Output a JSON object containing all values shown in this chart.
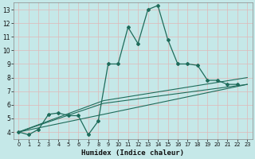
{
  "title": "",
  "xlabel": "Humidex (Indice chaleur)",
  "bg_color": "#c5e8e8",
  "grid_color": "#e0b8b8",
  "line_color": "#1e6b5a",
  "xlim": [
    -0.5,
    23.5
  ],
  "ylim": [
    3.5,
    13.5
  ],
  "xticks": [
    0,
    1,
    2,
    3,
    4,
    5,
    6,
    7,
    8,
    9,
    10,
    11,
    12,
    13,
    14,
    15,
    16,
    17,
    18,
    19,
    20,
    21,
    22,
    23
  ],
  "yticks": [
    4,
    5,
    6,
    7,
    8,
    9,
    10,
    11,
    12,
    13
  ],
  "main_x": [
    0,
    1,
    2,
    3,
    4,
    5,
    6,
    7,
    8,
    9,
    10,
    11,
    12,
    13,
    14,
    15,
    16,
    17,
    18,
    19,
    20,
    21,
    22,
    23
  ],
  "main_y": [
    4.0,
    3.8,
    4.2,
    5.3,
    5.4,
    5.2,
    5.2,
    3.8,
    4.8,
    9.0,
    9.0,
    11.7,
    10.5,
    13.0,
    13.3,
    10.8,
    9.0,
    9.0,
    8.9,
    7.8,
    7.8,
    7.5,
    7.5,
    null
  ],
  "line2_x": [
    0,
    23
  ],
  "line2_y": [
    4.0,
    7.5
  ],
  "line3_x": [
    0,
    8.5,
    23
  ],
  "line3_y": [
    4.0,
    6.3,
    8.0
  ],
  "line4_x": [
    0,
    8.5,
    23
  ],
  "line4_y": [
    4.0,
    6.1,
    7.5
  ]
}
